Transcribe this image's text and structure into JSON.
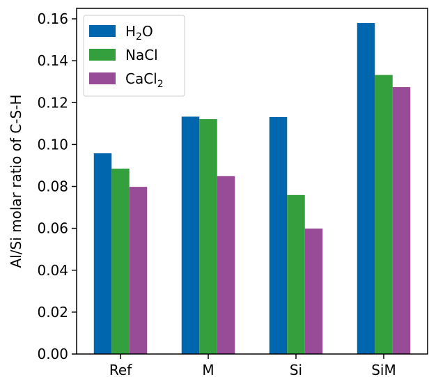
{
  "chart_data": {
    "type": "bar",
    "ylabel": "Al/Si molar ratio of C-S-H",
    "xlabel": "",
    "title": "",
    "categories": [
      "Ref",
      "M",
      "Si",
      "SiM"
    ],
    "series": [
      {
        "name": "H2O",
        "label_main": "H",
        "label_sub": "2",
        "label_tail": "O",
        "color": "#0066AE",
        "values": [
          0.0958,
          0.1133,
          0.1131,
          0.158
        ]
      },
      {
        "name": "NaCl",
        "label_main": "NaCl",
        "label_sub": "",
        "label_tail": "",
        "color": "#33A03D",
        "values": [
          0.0885,
          0.1121,
          0.0759,
          0.1332
        ]
      },
      {
        "name": "CaCl2",
        "label_main": "CaCl",
        "label_sub": "2",
        "label_tail": "",
        "color": "#984B96",
        "values": [
          0.0798,
          0.0849,
          0.0599,
          0.1274
        ]
      }
    ],
    "ylim": [
      0.0,
      0.165
    ],
    "yticks": [
      "0.00",
      "0.02",
      "0.04",
      "0.06",
      "0.08",
      "0.10",
      "0.12",
      "0.14",
      "0.16"
    ],
    "ytick_values": [
      0.0,
      0.02,
      0.04,
      0.06,
      0.08,
      0.1,
      0.12,
      0.14,
      0.16
    ],
    "grid": false,
    "legend_position": "top-left"
  }
}
